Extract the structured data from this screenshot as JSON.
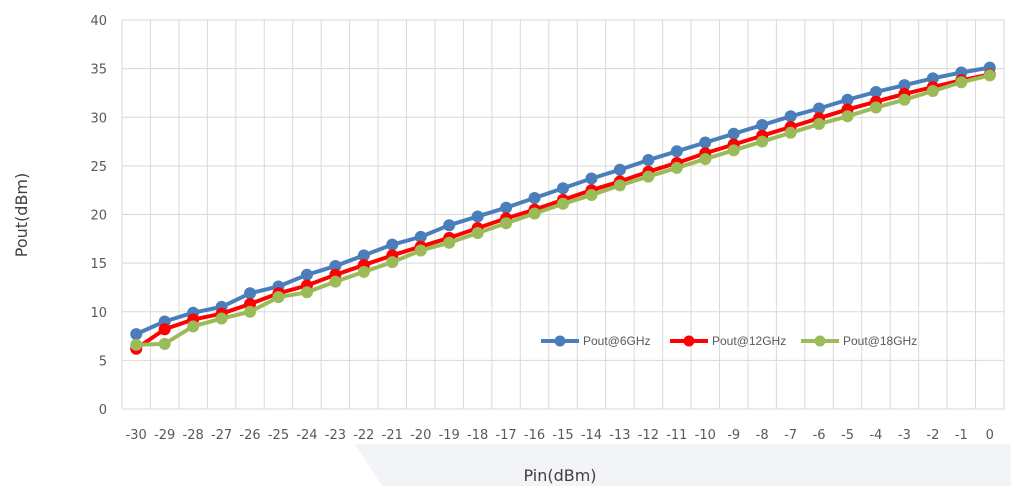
{
  "chart_data": {
    "type": "line",
    "xlabel": "Pin(dBm)",
    "ylabel": "Pout(dBm)",
    "ylim": [
      0,
      40
    ],
    "yticks": [
      0,
      5,
      10,
      15,
      20,
      25,
      30,
      35,
      40
    ],
    "categories": [
      -30,
      -29,
      -28,
      -27,
      -26,
      -25,
      -24,
      -23,
      -22,
      -21,
      -20,
      -19,
      -18,
      -17,
      -16,
      -15,
      -14,
      -13,
      -12,
      -11,
      -10,
      -9,
      -8,
      -7,
      -6,
      -5,
      -4,
      -3,
      -2,
      -1,
      0
    ],
    "grid": true,
    "legend_position": "inside-right",
    "series": [
      {
        "name": "Pout@6GHz",
        "color": "#4a7ebb",
        "values": [
          7.7,
          9.0,
          9.9,
          10.5,
          11.9,
          12.6,
          13.8,
          14.7,
          15.8,
          16.9,
          17.7,
          18.9,
          19.8,
          20.7,
          21.7,
          22.7,
          23.7,
          24.6,
          25.6,
          26.5,
          27.4,
          28.3,
          29.2,
          30.1,
          30.9,
          31.8,
          32.6,
          33.3,
          34.0,
          34.6,
          35.1
        ]
      },
      {
        "name": "Pout@12GHz",
        "color": "#ff0000",
        "values": [
          6.2,
          8.2,
          9.2,
          9.8,
          10.8,
          11.9,
          12.7,
          13.8,
          14.8,
          15.8,
          16.7,
          17.6,
          18.6,
          19.6,
          20.5,
          21.5,
          22.5,
          23.4,
          24.4,
          25.3,
          26.3,
          27.2,
          28.1,
          29.0,
          29.9,
          30.8,
          31.6,
          32.4,
          33.1,
          33.8,
          34.4
        ]
      },
      {
        "name": "Pout@18GHz",
        "color": "#9bbb59",
        "values": [
          6.6,
          6.7,
          8.5,
          9.3,
          10.0,
          11.5,
          12.0,
          13.1,
          14.1,
          15.1,
          16.3,
          17.1,
          18.1,
          19.1,
          20.1,
          21.1,
          22.0,
          23.0,
          23.9,
          24.8,
          25.7,
          26.6,
          27.5,
          28.4,
          29.3,
          30.1,
          31.0,
          31.8,
          32.7,
          33.6,
          34.3
        ]
      }
    ]
  }
}
